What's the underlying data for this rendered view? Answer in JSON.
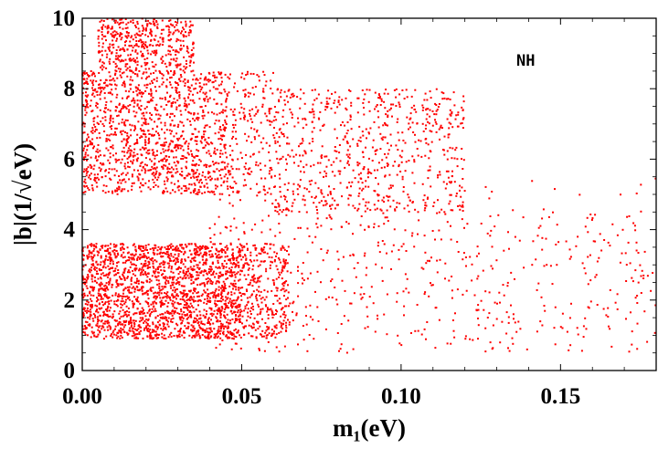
{
  "chart_data": {
    "type": "scatter",
    "title": "",
    "xlabel": "m₁(eV)",
    "ylabel": "|b|(1/√eV)",
    "xlim": [
      0,
      0.18
    ],
    "ylim": [
      0,
      10
    ],
    "x_ticks": [
      "0.00",
      "0.05",
      "0.10",
      "0.15"
    ],
    "y_ticks": [
      "0",
      "2",
      "4",
      "6",
      "8",
      "10"
    ],
    "annotation": "NH",
    "marker_color": "#ff0000",
    "grid": false,
    "series": [
      {
        "regions": [
          {
            "x": [
              0.0,
              0.065
            ],
            "y": [
              0.9,
              3.6
            ],
            "density": "very high"
          },
          {
            "x": [
              0.0,
              0.06
            ],
            "y": [
              5.0,
              8.5
            ],
            "density": "high"
          },
          {
            "x": [
              0.005,
              0.035
            ],
            "y": [
              8.5,
              10.0
            ],
            "density": "medium"
          },
          {
            "x": [
              0.04,
              0.18
            ],
            "y": [
              0.5,
              5.5
            ],
            "density": "low"
          },
          {
            "x": [
              0.06,
              0.12
            ],
            "y": [
              4.5,
              8.0
            ],
            "density": "low"
          }
        ]
      }
    ]
  }
}
